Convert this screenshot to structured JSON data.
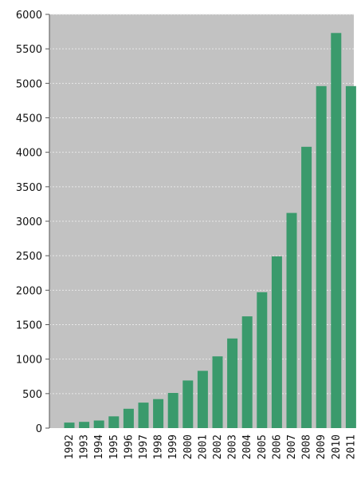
{
  "chart_data": {
    "type": "bar",
    "title": "",
    "xlabel": "",
    "ylabel": "",
    "categories": [
      "1992",
      "1993",
      "1994",
      "1995",
      "1996",
      "1997",
      "1998",
      "1999",
      "2000",
      "2001",
      "2002",
      "2003",
      "2004",
      "2005",
      "2006",
      "2007",
      "2008",
      "2009",
      "2010",
      "2011"
    ],
    "series": [
      {
        "values": [
          80,
          90,
          110,
          170,
          280,
          370,
          420,
          510,
          690,
          830,
          1040,
          1300,
          1620,
          1970,
          2490,
          3120,
          4080,
          4960,
          5730,
          4960
        ]
      }
    ],
    "ylim": [
      0,
      6000
    ],
    "yticks": [
      0,
      500,
      1000,
      1500,
      2000,
      2500,
      3000,
      3500,
      4000,
      4500,
      5000,
      5500,
      6000
    ],
    "grid": true,
    "legend": "none",
    "colors": {
      "bar": "#3a9a6c",
      "plot_background": "#c2c2c2",
      "grid": "#e8e8e8",
      "axis": "#555555"
    }
  }
}
